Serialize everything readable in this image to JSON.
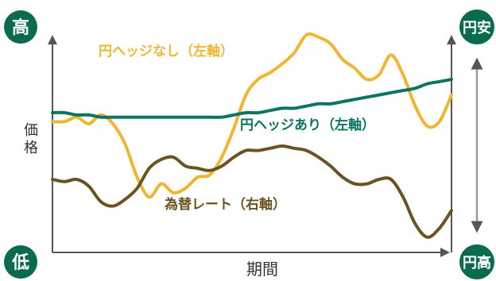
{
  "chart_data": {
    "type": "line",
    "xlabel": "期間",
    "ylabel": "価格",
    "y_high_label": "高",
    "y_low_label": "低",
    "right_top_label": "円安",
    "right_bottom_label": "円高",
    "colors": {
      "unhedged": "#f0b632",
      "hedged": "#0b7561",
      "fx": "#6b5320",
      "badge": "#0b6b4e",
      "axis": "#555555"
    },
    "series": [
      {
        "name": "円ヘッジなし（左軸）",
        "axis": "left",
        "values": [
          56,
          56,
          58,
          55,
          59,
          55,
          46,
          31,
          22,
          28,
          24,
          26,
          31,
          32,
          40,
          53,
          68,
          75,
          78,
          82,
          87,
          95,
          94,
          91,
          84,
          80,
          75,
          77,
          86,
          77,
          63,
          54,
          56,
          68
        ]
      },
      {
        "name": "円ヘッジあり（左軸）",
        "axis": "left",
        "values": [
          60,
          60,
          59,
          59,
          58,
          58,
          58,
          58,
          58,
          58,
          58,
          58,
          58,
          58,
          58,
          59,
          60,
          60,
          61,
          62,
          62,
          63,
          64,
          64,
          65,
          66,
          67,
          68,
          69,
          70,
          71,
          73,
          74,
          75
        ]
      },
      {
        "name": "為替レート（右軸）",
        "axis": "right",
        "values": [
          30,
          29,
          30,
          27,
          20,
          18,
          21,
          26,
          35,
          39,
          40,
          36,
          35,
          34,
          36,
          40,
          43,
          43,
          44,
          45,
          44,
          43,
          40,
          36,
          31,
          28,
          28,
          30,
          30,
          22,
          10,
          4,
          8,
          16
        ]
      }
    ]
  }
}
